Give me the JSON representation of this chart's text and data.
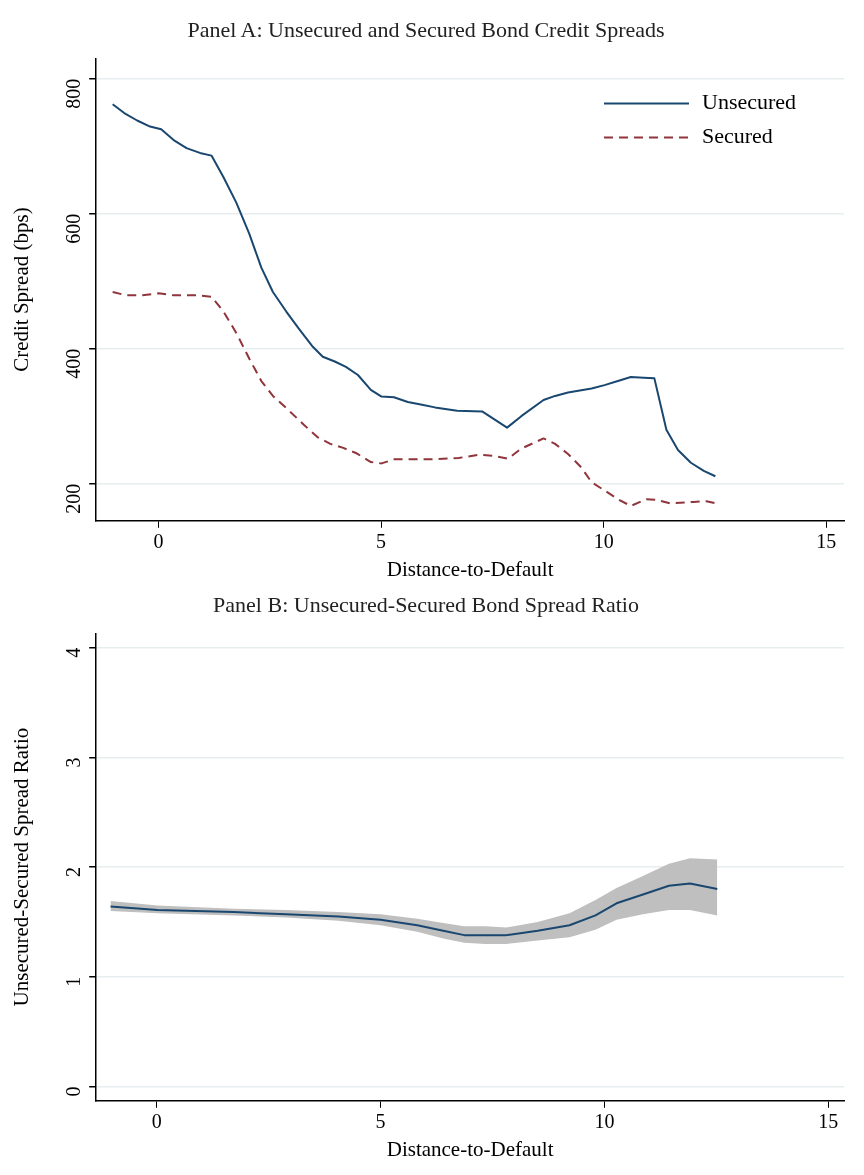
{
  "chart_data": [
    {
      "type": "line",
      "title": "Panel A: Unsecured and Secured Bond Credit Spreads",
      "xlabel": "Distance-to-Default",
      "ylabel": "Credit Spread (bps)",
      "xlim": [
        -1.4,
        15.4
      ],
      "ylim": [
        145,
        830
      ],
      "xticks": [
        0,
        5,
        10,
        15
      ],
      "yticks": [
        200,
        400,
        600,
        800
      ],
      "grid": "y",
      "legend": "top right",
      "series": [
        {
          "name": "Unsecured",
          "color": "#1a476f",
          "line_style": "solid",
          "x": [
            -1.03,
            -0.77,
            -0.48,
            -0.19,
            0.06,
            0.34,
            0.63,
            0.93,
            1.19,
            1.46,
            1.75,
            2.04,
            2.31,
            2.57,
            2.87,
            3.16,
            3.45,
            3.69,
            3.96,
            4.21,
            4.48,
            4.77,
            5.01,
            5.29,
            5.6,
            5.92,
            6.21,
            6.71,
            7.27,
            7.83,
            8.15,
            8.65,
            8.91,
            9.2,
            9.73,
            10.02,
            10.32,
            10.61,
            10.9,
            11.14,
            11.41,
            11.67,
            11.96,
            12.25,
            12.51
          ],
          "values": [
            762,
            749,
            738,
            729,
            725,
            709,
            697,
            690,
            686,
            654,
            616,
            570,
            520,
            484,
            455,
            429,
            404,
            388,
            381,
            373,
            361,
            339,
            329,
            328,
            321,
            317,
            313,
            308,
            307,
            283,
            300,
            324,
            330,
            335,
            341,
            346,
            352,
            358,
            357,
            356,
            280,
            250,
            231,
            219,
            211
          ]
        },
        {
          "name": "Secured",
          "color": "#90353b",
          "line_style": "dashed",
          "x": [
            -1.03,
            -0.72,
            -0.36,
            0.0,
            0.34,
            0.87,
            1.19,
            1.46,
            1.75,
            2.04,
            2.31,
            2.57,
            2.92,
            3.27,
            3.57,
            3.86,
            4.15,
            4.45,
            4.77,
            5.01,
            5.29,
            6.09,
            6.74,
            7.21,
            7.56,
            7.85,
            8.15,
            8.65,
            8.91,
            9.2,
            9.5,
            9.73,
            10.02,
            10.32,
            10.61,
            10.96,
            11.2,
            11.49,
            12.02,
            12.31,
            12.51
          ],
          "values": [
            484,
            479,
            479,
            482,
            479,
            479,
            477,
            455,
            423,
            385,
            352,
            330,
            309,
            287,
            269,
            259,
            253,
            245,
            232,
            230,
            236,
            236,
            238,
            243,
            241,
            237,
            252,
            267,
            259,
            244,
            224,
            202,
            190,
            177,
            167,
            177,
            176,
            171,
            173,
            174,
            171
          ]
        }
      ]
    },
    {
      "type": "line",
      "title": "Panel B: Unsecured-Secured Bond Spread Ratio",
      "xlabel": "Distance-to-Default",
      "ylabel": "Unsecured-Secured Spread Ratio",
      "xlim": [
        -1.35,
        15.35
      ],
      "ylim": [
        -0.13,
        4.13
      ],
      "xticks": [
        0,
        5,
        10,
        15
      ],
      "yticks": [
        0,
        1,
        2,
        3,
        4
      ],
      "grid": "y",
      "series": [
        {
          "color": "#1a476f",
          "line_style": "solid",
          "x": [
            -1.03,
            0.02,
            1.72,
            2.89,
            4.06,
            5.0,
            5.82,
            6.4,
            6.87,
            7.34,
            7.81,
            8.51,
            9.22,
            9.8,
            10.27,
            10.86,
            11.44,
            11.91,
            12.52
          ],
          "values": [
            1.64,
            1.61,
            1.59,
            1.57,
            1.55,
            1.52,
            1.47,
            1.42,
            1.38,
            1.38,
            1.38,
            1.42,
            1.47,
            1.56,
            1.67,
            1.75,
            1.83,
            1.85,
            1.8
          ],
          "lower": [
            1.6,
            1.58,
            1.56,
            1.54,
            1.51,
            1.47,
            1.41,
            1.35,
            1.31,
            1.3,
            1.3,
            1.33,
            1.36,
            1.43,
            1.52,
            1.57,
            1.61,
            1.61,
            1.56
          ],
          "upper": [
            1.69,
            1.65,
            1.62,
            1.61,
            1.59,
            1.57,
            1.53,
            1.49,
            1.46,
            1.46,
            1.45,
            1.5,
            1.58,
            1.7,
            1.81,
            1.92,
            2.03,
            2.08,
            2.07
          ]
        }
      ]
    }
  ]
}
